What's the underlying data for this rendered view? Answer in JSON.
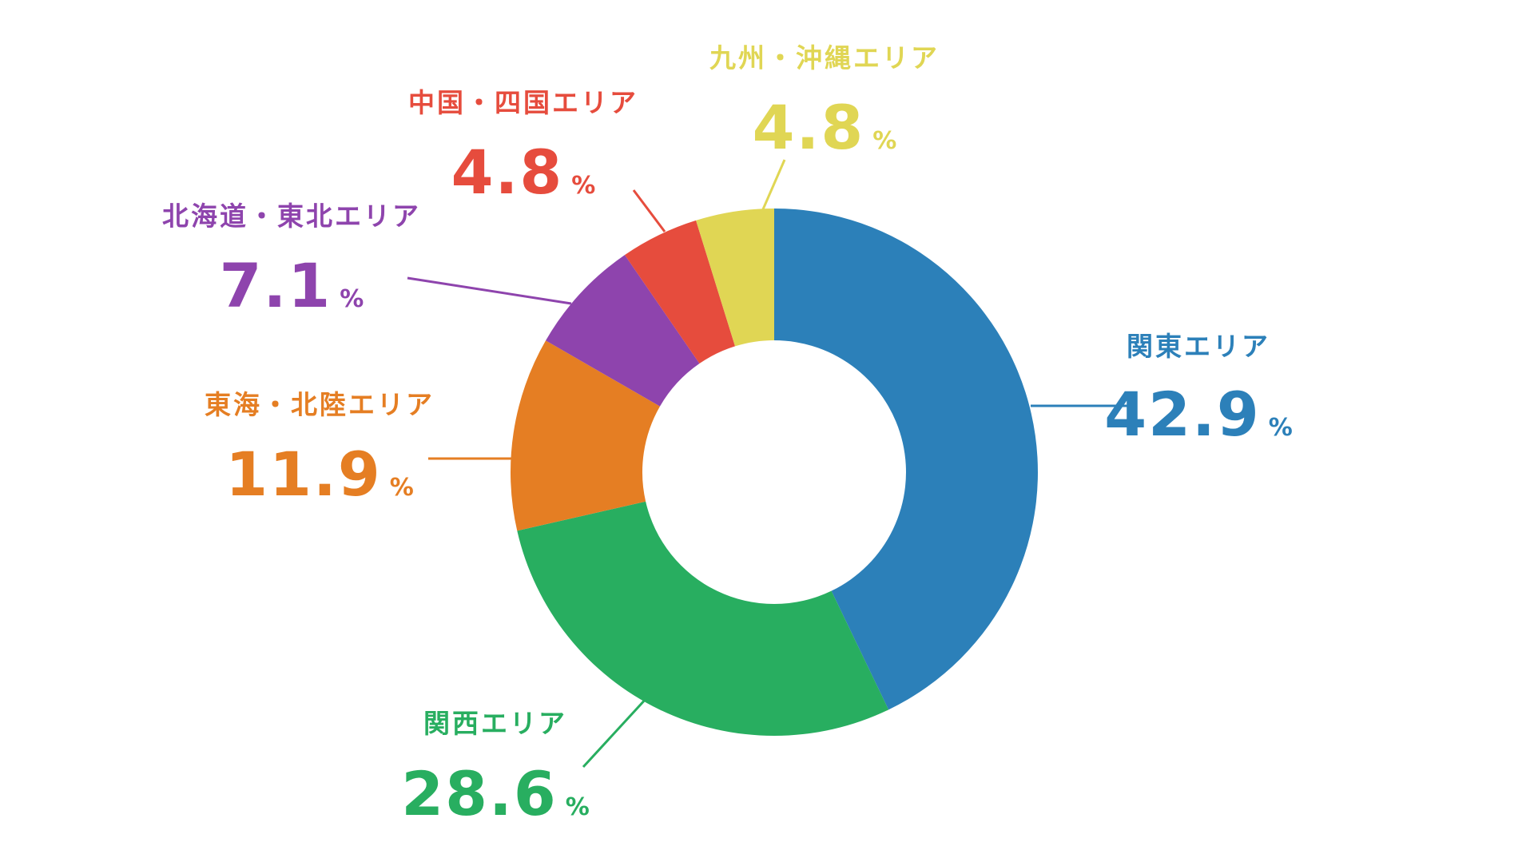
{
  "chart_data": {
    "type": "donut",
    "title": "",
    "unit": "%",
    "slices": [
      {
        "label": "関東エリア",
        "value": 42.9,
        "value_text": "42.9",
        "color": "#2C80B9"
      },
      {
        "label": "関西エリア",
        "value": 28.6,
        "value_text": "28.6",
        "color": "#28AE60"
      },
      {
        "label": "東海・北陸エリア",
        "value": 11.9,
        "value_text": "11.9",
        "color": "#E57E23"
      },
      {
        "label": "北海道・東北エリア",
        "value": 7.1,
        "value_text": "7.1",
        "color": "#8E44AD"
      },
      {
        "label": "中国・四国エリア",
        "value": 4.8,
        "value_text": "4.8",
        "color": "#E64C3D"
      },
      {
        "label": "九州・沖縄エリア",
        "value": 4.8,
        "value_text": "4.8",
        "color": "#E0D654"
      }
    ],
    "start": "top",
    "direction": "clockwise",
    "legend": "none"
  }
}
